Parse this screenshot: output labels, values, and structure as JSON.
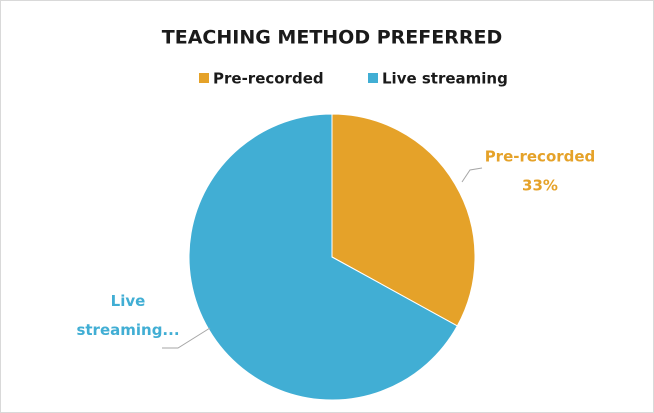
{
  "chart_data": {
    "type": "pie",
    "title": "TEACHING METHOD PREFERRED",
    "categories": [
      "Pre-recorded",
      "Live streaming"
    ],
    "values": [
      33,
      67
    ],
    "colors": [
      "#e5a229",
      "#41aed4"
    ],
    "slice_labels": [
      "Pre-recorded",
      "Live streaming..."
    ],
    "value_labels": [
      "33%",
      null
    ],
    "legend": "top"
  }
}
